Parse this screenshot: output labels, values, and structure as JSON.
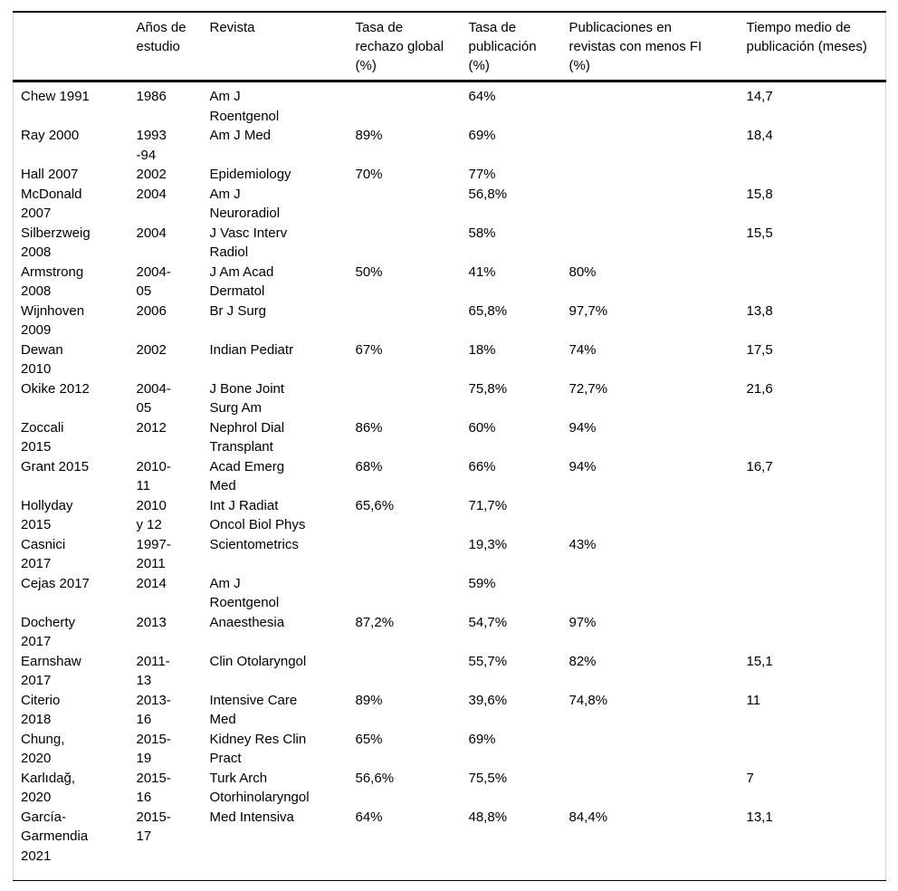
{
  "styles": {
    "text_color": "#000000",
    "rule_color": "#000000",
    "side_border_color": "#d6d6d6",
    "background_color": "#ffffff"
  },
  "table": {
    "columns": [
      "",
      "Años de\nestudio",
      "Revista",
      "Tasa de\nrechazo global\n(%)",
      "Tasa de\npublicación\n(%)",
      "Publicaciones en\nrevistas con menos FI\n(%)",
      "Tiempo medio de\npublicación (meses)"
    ],
    "rows": [
      [
        "Chew 1991",
        "1986",
        "Am J\nRoentgenol",
        "",
        "64%",
        "",
        "14,7"
      ],
      [
        "Ray 2000",
        "1993\n-94",
        "Am J Med",
        "89%",
        "69%",
        "",
        "18,4"
      ],
      [
        "Hall 2007",
        "2002",
        "Epidemiology",
        "70%",
        "77%",
        "",
        ""
      ],
      [
        "McDonald\n2007",
        "2004",
        "Am J\nNeuroradiol",
        "",
        "56,8%",
        "",
        "15,8"
      ],
      [
        "Silberzweig\n2008",
        "2004",
        "J Vasc Interv\nRadiol",
        "",
        "58%",
        "",
        "15,5"
      ],
      [
        "Armstrong\n2008",
        "2004-\n05",
        "J Am Acad\nDermatol",
        "50%",
        "41%",
        "80%",
        ""
      ],
      [
        "Wijnhoven\n2009",
        "2006",
        "Br J Surg",
        "",
        "65,8%",
        "97,7%",
        "13,8"
      ],
      [
        "Dewan\n2010",
        "2002",
        "Indian Pediatr",
        "67%",
        "18%",
        "74%",
        "17,5"
      ],
      [
        "Okike 2012",
        "2004-\n05",
        "J Bone Joint\nSurg Am",
        "",
        "75,8%",
        "72,7%",
        "21,6"
      ],
      [
        "Zoccali\n2015",
        "2012",
        "Nephrol Dial\nTransplant",
        "86%",
        "60%",
        "94%",
        ""
      ],
      [
        "Grant 2015",
        "2010-\n11",
        "Acad Emerg\nMed",
        "68%",
        "66%",
        "94%",
        "16,7"
      ],
      [
        "Hollyday\n2015",
        "2010\ny 12",
        "Int J Radiat\nOncol Biol Phys",
        "65,6%",
        "71,7%",
        "",
        ""
      ],
      [
        "Casnici\n2017",
        "1997-\n2011",
        "Scientometrics",
        "",
        "19,3%",
        "43%",
        ""
      ],
      [
        "Cejas 2017",
        "2014",
        "Am J\nRoentgenol",
        "",
        "59%",
        "",
        ""
      ],
      [
        "Docherty\n2017",
        "2013",
        "Anaesthesia",
        "87,2%",
        "54,7%",
        "97%",
        ""
      ],
      [
        "Earnshaw\n2017",
        "2011-\n13",
        "Clin Otolaryngol",
        "",
        "55,7%",
        "82%",
        "15,1"
      ],
      [
        "Citerio\n2018",
        "2013-\n16",
        "Intensive Care\nMed",
        "89%",
        "39,6%",
        "74,8%",
        "11"
      ],
      [
        "Chung,\n2020",
        "2015-\n19",
        "Kidney Res Clin\nPract",
        "65%",
        "69%",
        "",
        ""
      ],
      [
        "Karlıdağ,\n2020",
        "2015-\n16",
        "Turk Arch\nOtorhinolaryngol",
        "56,6%",
        "75,5%",
        "",
        "7"
      ],
      [
        "García-\nGarmendia\n2021",
        "2015-\n17",
        "Med Intensiva",
        "64%",
        "48,8%",
        "84,4%",
        "13,1"
      ]
    ]
  }
}
